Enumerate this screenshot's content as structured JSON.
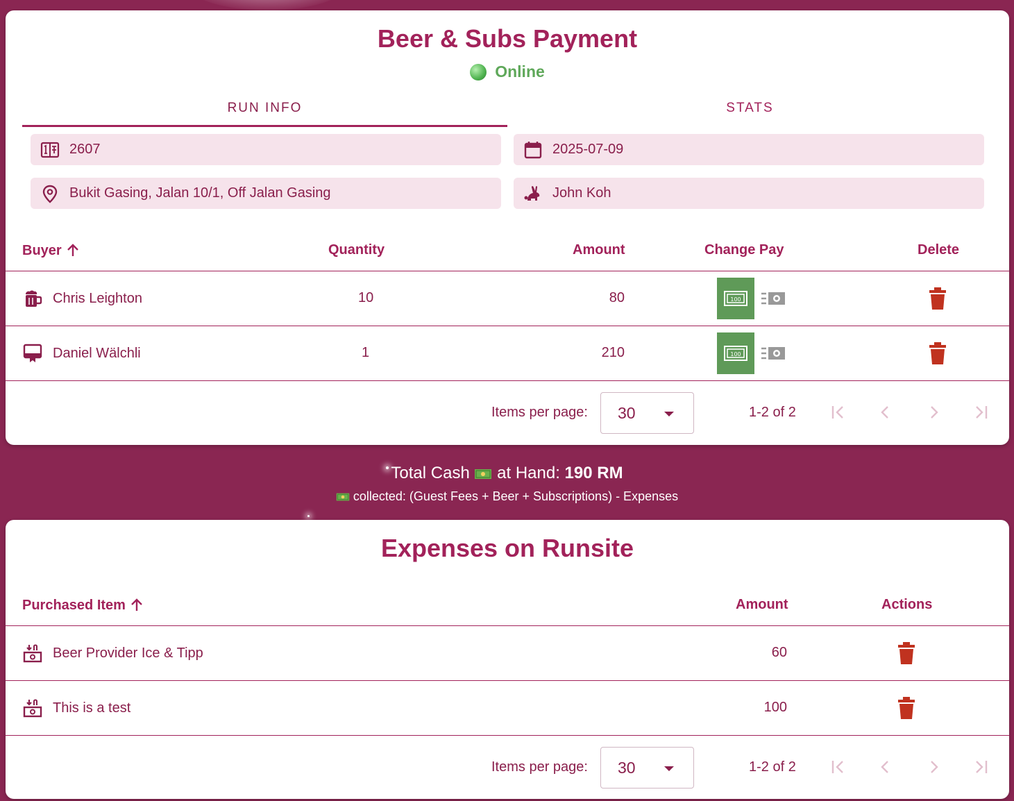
{
  "app": {
    "title": "Beer & Subs Payment",
    "status": "Online"
  },
  "tabs": [
    {
      "label": "RUN INFO",
      "active": true
    },
    {
      "label": "STATS",
      "active": false
    }
  ],
  "run_info": {
    "run_number": "2607",
    "date": "2025-07-09",
    "location": "Bukit Gasing, Jalan 10/1, Off Jalan Gasing",
    "hare": "John Koh"
  },
  "purchases": {
    "headers": {
      "buyer": "Buyer",
      "quantity": "Quantity",
      "amount": "Amount",
      "change_pay": "Change Pay",
      "delete": "Delete"
    },
    "rows": [
      {
        "icon": "beer-mug-icon",
        "buyer": "Chris Leighton",
        "quantity": "10",
        "amount": "80"
      },
      {
        "icon": "subscription-card-icon",
        "buyer": "Daniel Wälchli",
        "quantity": "1",
        "amount": "210"
      }
    ],
    "pager": {
      "items_per_page_label": "Items per page:",
      "items_per_page": "30",
      "range": "1-2 of 2"
    }
  },
  "cash": {
    "prefix": "Total Cash",
    "middle": "at Hand:",
    "total": "190 RM",
    "note": "collected: (Guest Fees + Beer + Subscriptions) - Expenses"
  },
  "expenses": {
    "title": "Expenses on Runsite",
    "headers": {
      "item": "Purchased Item",
      "amount": "Amount",
      "actions": "Actions"
    },
    "rows": [
      {
        "item": "Beer Provider Ice & Tipp",
        "amount": "60"
      },
      {
        "item": "This is a test",
        "amount": "100"
      }
    ],
    "pager": {
      "items_per_page_label": "Items per page:",
      "items_per_page": "30",
      "range": "1-2 of 2"
    }
  },
  "colors": {
    "background": "#8a2652",
    "accent": "#a2225a",
    "field_bg": "#f6e3eb",
    "online": "#5fa85a",
    "pay_button": "#5f9a58",
    "delete": "#c0321f"
  }
}
